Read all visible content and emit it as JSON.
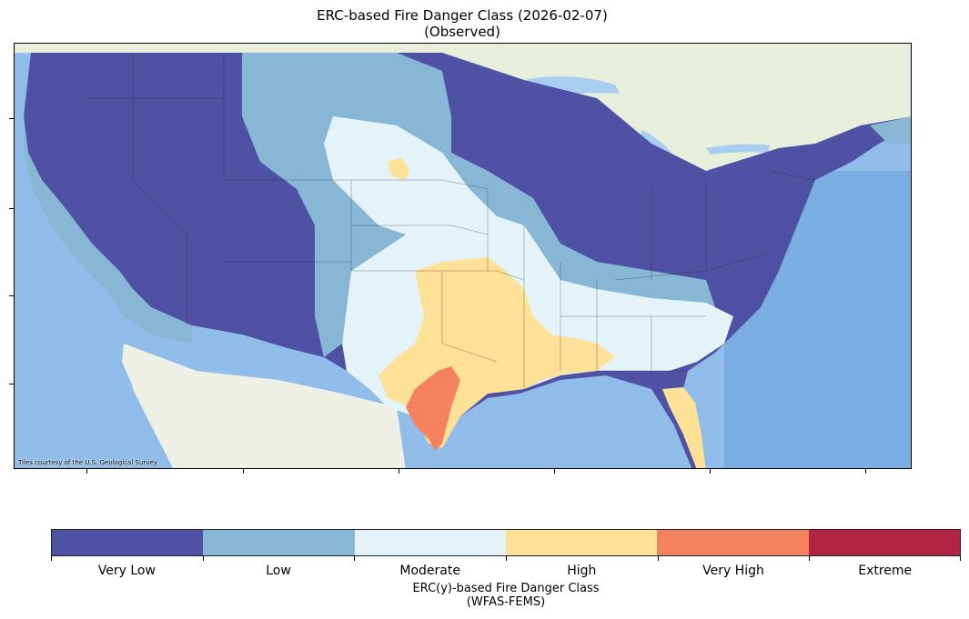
{
  "title": {
    "line1": "ERC-based Fire Danger Class (2026-02-07)",
    "line2": "(Observed)"
  },
  "map": {
    "credit": "Tiles courtesy of the U.S. Geological Survey",
    "class_colors": {
      "very_low": "#4f52a4",
      "low": "#87b7d5",
      "moderate": "#e4f3f8",
      "high": "#fde197",
      "very_high": "#f5825e",
      "extreme": "#b32443"
    },
    "background_colors": {
      "ocean": "#9fc6ec",
      "land": "#eef0e6",
      "canada": "#e8eddc"
    }
  },
  "colorbar": {
    "classes": [
      {
        "label": "Very Low",
        "color": "#4f52a4"
      },
      {
        "label": "Low",
        "color": "#87b7d5"
      },
      {
        "label": "Moderate",
        "color": "#e4f3f8"
      },
      {
        "label": "High",
        "color": "#fde197"
      },
      {
        "label": "Very High",
        "color": "#f5825e"
      },
      {
        "label": "Extreme",
        "color": "#b32443"
      }
    ],
    "title_line1": "ERC(y)-based Fire Danger Class",
    "title_line2": "(WFAS-FEMS)"
  }
}
